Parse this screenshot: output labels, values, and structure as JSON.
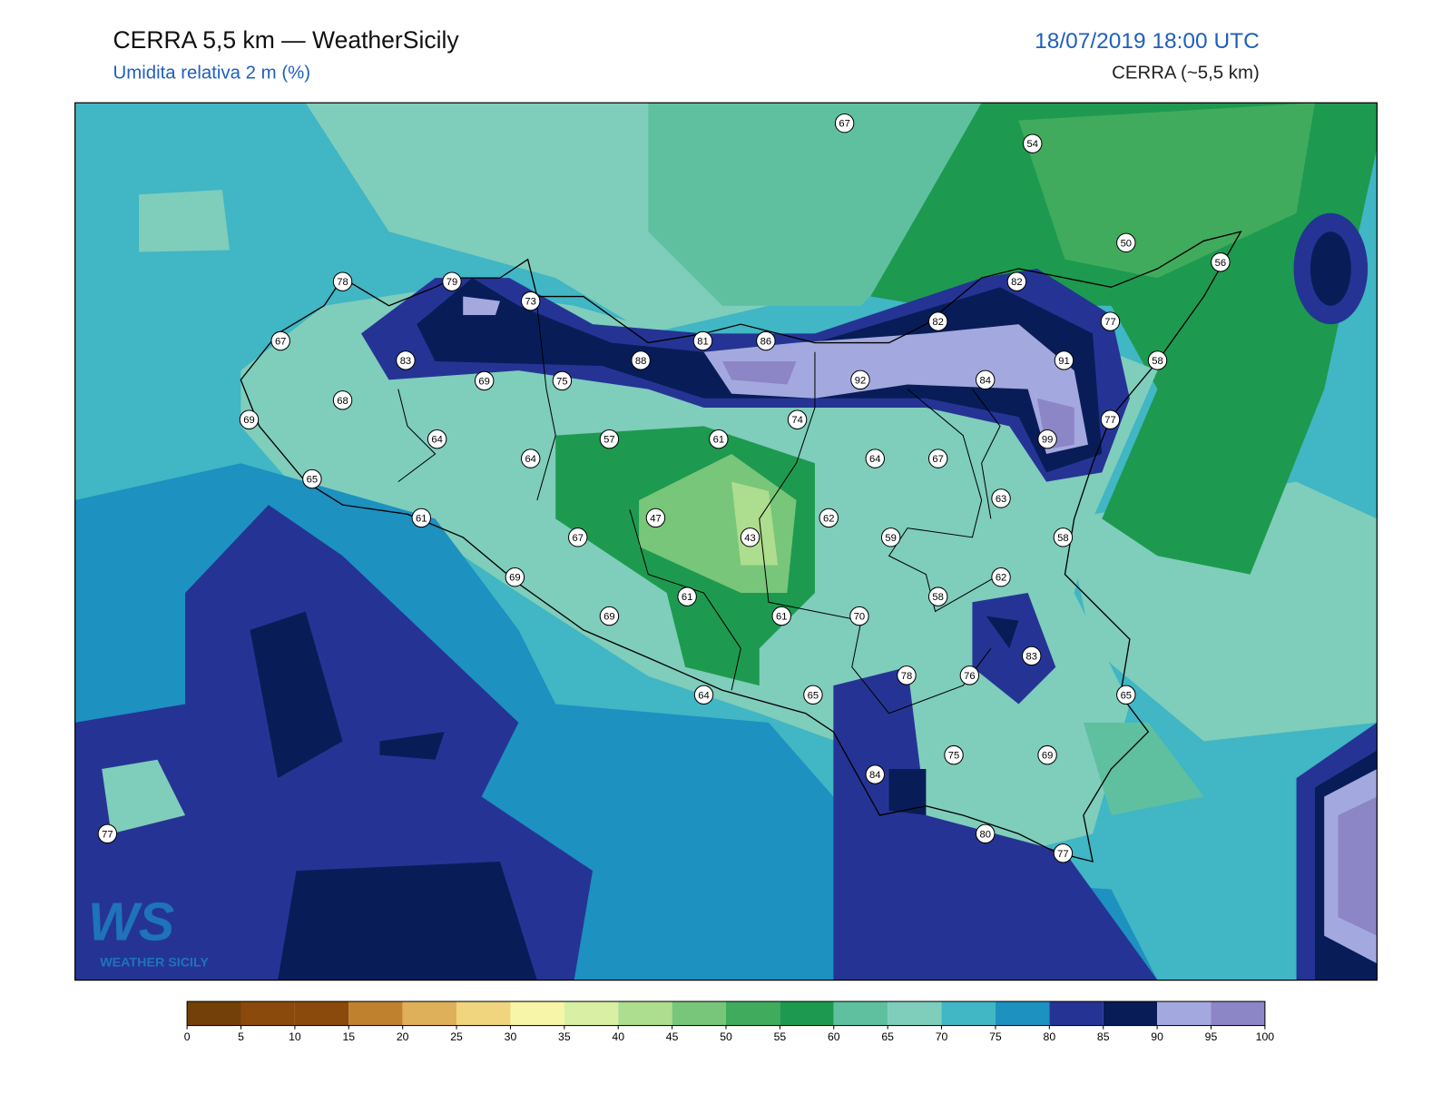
{
  "header": {
    "title": "CERRA 5,5 km — WeatherSicily",
    "subtitle": "Umidita relativa 2 m (%)",
    "datetime": "18/07/2019 18:00 UTC",
    "model": "CERRA (~5,5 km)"
  },
  "map": {
    "stations": [
      67,
      54,
      50,
      56,
      78,
      79,
      73,
      82,
      82,
      77,
      67,
      83,
      69,
      75,
      88,
      81,
      86,
      92,
      84,
      91,
      58,
      68,
      69,
      74,
      77,
      99,
      64,
      57,
      61,
      64,
      64,
      67,
      65,
      63,
      61,
      47,
      62,
      43,
      67,
      59,
      58,
      69,
      62,
      61,
      58,
      69,
      61,
      70,
      83,
      78,
      76,
      64,
      65,
      65,
      75,
      69,
      84,
      77,
      80,
      77
    ]
  },
  "logo": {
    "mark": "WS",
    "text": "WEATHER SICILY"
  },
  "colorbar": {
    "ticks": [
      0,
      5,
      10,
      15,
      20,
      25,
      30,
      35,
      40,
      45,
      50,
      55,
      60,
      65,
      70,
      75,
      80,
      85,
      90,
      95,
      100
    ],
    "colors": [
      "#734009",
      "#8a4a0c",
      "#8a4a0c",
      "#bf812d",
      "#dfb05a",
      "#f0d47e",
      "#f6f5a8",
      "#d9efa3",
      "#addd8e",
      "#78c679",
      "#41ab5d",
      "#1d9a4f",
      "#5fc0a0",
      "#7fcdbb",
      "#41b6c4",
      "#1d91c0",
      "#253494",
      "#081d58",
      "#a3a9de",
      "#8c85c6"
    ]
  }
}
